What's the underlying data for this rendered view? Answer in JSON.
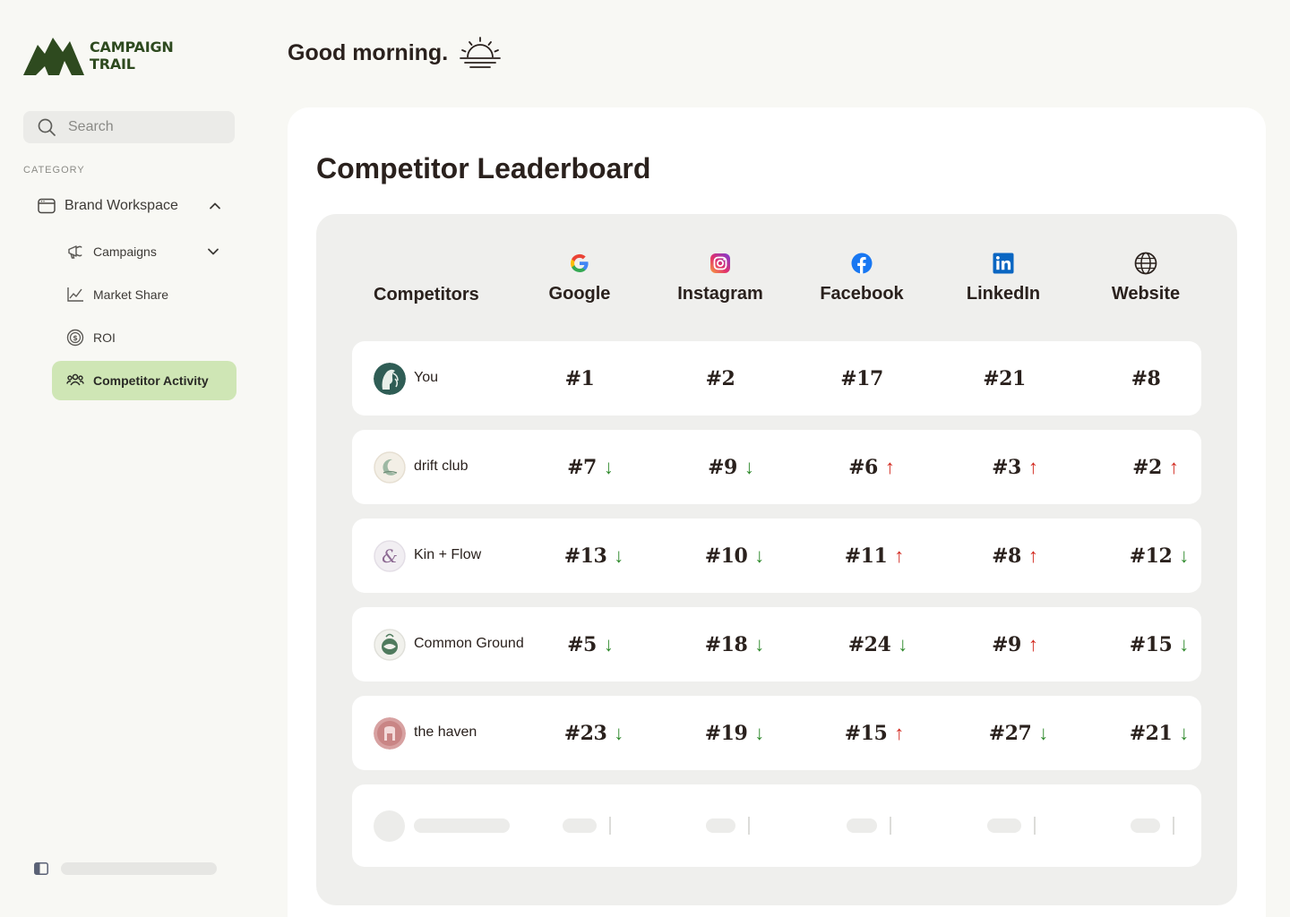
{
  "brand": {
    "line1": "CAMPAIGN",
    "line2": "TRAIL"
  },
  "search": {
    "placeholder": "Search"
  },
  "sidebar": {
    "category_label": "CATEGORY",
    "workspace": {
      "label": "Brand Workspace",
      "icon": "window-icon",
      "expanded": true
    },
    "items": [
      {
        "label": "Campaigns",
        "icon": "megaphone-icon",
        "has_chevron": true
      },
      {
        "label": "Market Share",
        "icon": "line-chart-icon"
      },
      {
        "label": "ROI",
        "icon": "dollar-coin-icon"
      },
      {
        "label": "Competitor Activity",
        "icon": "users-icon",
        "active": true
      }
    ],
    "accent_color": "#cfe6b5"
  },
  "greeting": {
    "text": "Good morning.",
    "icon": "sunrise-icon"
  },
  "leaderboard": {
    "title": "Competitor Leaderboard",
    "competitors_header": "Competitors",
    "columns": [
      {
        "label": "Google",
        "icon": "google-icon"
      },
      {
        "label": "Instagram",
        "icon": "instagram-icon"
      },
      {
        "label": "Facebook",
        "icon": "facebook-icon"
      },
      {
        "label": "LinkedIn",
        "icon": "linkedin-icon"
      },
      {
        "label": "Website",
        "icon": "globe-icon"
      }
    ],
    "rows": [
      {
        "name": "You",
        "avatar": "you-avatar",
        "ranks": [
          {
            "value": "#1",
            "trend": ""
          },
          {
            "value": "#2",
            "trend": ""
          },
          {
            "value": "#17",
            "trend": ""
          },
          {
            "value": "#21",
            "trend": ""
          },
          {
            "value": "#8",
            "trend": ""
          }
        ]
      },
      {
        "name": "drift club",
        "avatar": "drift-club-avatar",
        "ranks": [
          {
            "value": "#7",
            "trend": "down"
          },
          {
            "value": "#9",
            "trend": "down"
          },
          {
            "value": "#6",
            "trend": "up"
          },
          {
            "value": "#3",
            "trend": "up"
          },
          {
            "value": "#2",
            "trend": "up"
          }
        ]
      },
      {
        "name": "Kin + Flow",
        "avatar": "kin-flow-avatar",
        "ranks": [
          {
            "value": "#13",
            "trend": "down"
          },
          {
            "value": "#10",
            "trend": "down"
          },
          {
            "value": "#11",
            "trend": "up"
          },
          {
            "value": "#8",
            "trend": "up"
          },
          {
            "value": "#12",
            "trend": "down"
          }
        ]
      },
      {
        "name": "Common Ground",
        "avatar": "common-ground-avatar",
        "ranks": [
          {
            "value": "#5",
            "trend": "down"
          },
          {
            "value": "#18",
            "trend": "down"
          },
          {
            "value": "#24",
            "trend": "down"
          },
          {
            "value": "#9",
            "trend": "up"
          },
          {
            "value": "#15",
            "trend": "down"
          }
        ]
      },
      {
        "name": "the haven",
        "avatar": "the-haven-avatar",
        "ranks": [
          {
            "value": "#23",
            "trend": "down"
          },
          {
            "value": "#19",
            "trend": "down"
          },
          {
            "value": "#15",
            "trend": "up"
          },
          {
            "value": "#27",
            "trend": "down"
          },
          {
            "value": "#21",
            "trend": "down"
          }
        ]
      }
    ],
    "trend_colors": {
      "up": "#d2281e",
      "down": "#2f8a2c"
    }
  }
}
